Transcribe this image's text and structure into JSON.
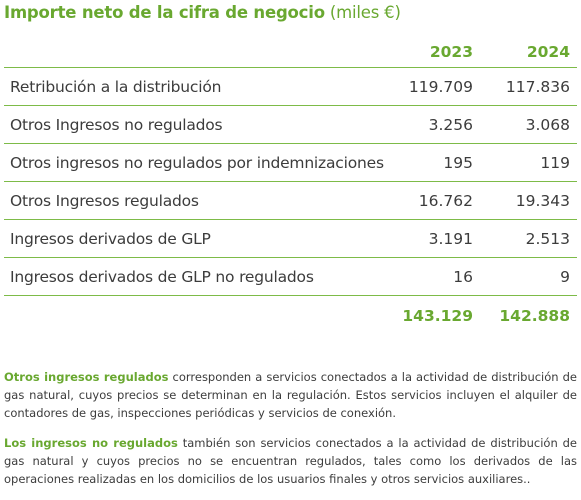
{
  "title": {
    "main": "Importe neto de la cifra de negocio",
    "unit": "(miles €)"
  },
  "table": {
    "columns": [
      "2023",
      "2024"
    ],
    "rows": [
      {
        "label": "Retribución a la distribución",
        "v2023": "119.709",
        "v2024": "117.836"
      },
      {
        "label": "Otros Ingresos no regulados",
        "v2023": "3.256",
        "v2024": "3.068"
      },
      {
        "label": "Otros ingresos no regulados por indemnizaciones",
        "v2023": "195",
        "v2024": "119"
      },
      {
        "label": "Otros Ingresos regulados",
        "v2023": "16.762",
        "v2024": "19.343"
      },
      {
        "label": "Ingresos derivados de GLP",
        "v2023": "3.191",
        "v2024": "2.513"
      },
      {
        "label": "Ingresos derivados de GLP no regulados",
        "v2023": "16",
        "v2024": "9"
      }
    ],
    "total": {
      "v2023": "143.129",
      "v2024": "142.888"
    }
  },
  "notes": [
    {
      "lead": "Otros ingresos regulados",
      "text": " corresponden a servicios conectados a la actividad de distribución de gas natural, cuyos precios se determinan en la regulación. Estos servicios incluyen el alquiler de contadores de gas, inspecciones periódicas y servicios de conexión."
    },
    {
      "lead": "Los ingresos no regulados",
      "text": " también son servicios conectados a la actividad de distribución de gas natural y cuyos precios no se encuentran regulados, tales como los derivados de las operaciones realizadas en los domicilios de los usuarios finales y otros servicios auxiliares.."
    }
  ],
  "colors": {
    "accent": "#69a830",
    "rule": "#7dbb48",
    "text": "#3c3c3c"
  }
}
